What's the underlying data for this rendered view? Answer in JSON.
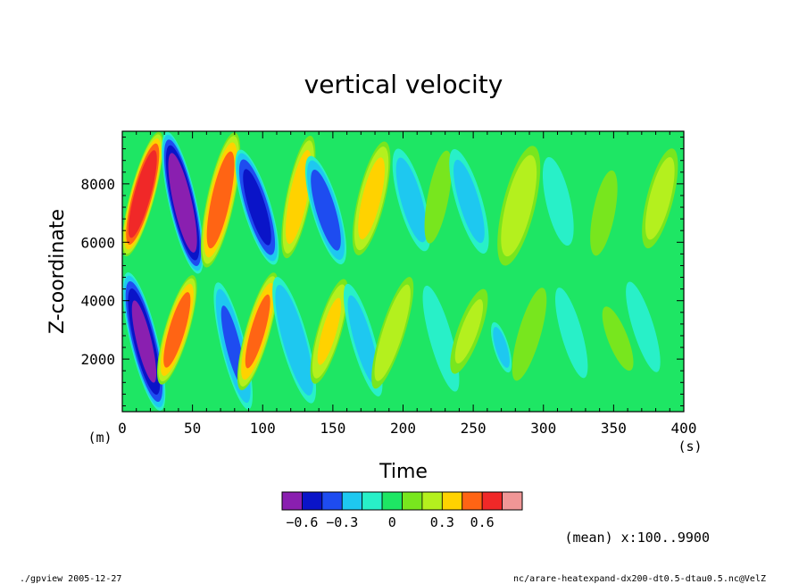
{
  "chart_data": {
    "type": "heatmap",
    "title": "vertical velocity",
    "xlabel": "Time",
    "ylabel": "Z-coordinate",
    "x_unit": "(s)",
    "y_unit": "(m)",
    "xlim": [
      0,
      400
    ],
    "ylim": [
      200,
      9800
    ],
    "x_ticks": [
      "0",
      "50",
      "100",
      "150",
      "200",
      "250",
      "300",
      "350",
      "400"
    ],
    "y_ticks": [
      "2000",
      "4000",
      "6000",
      "8000"
    ],
    "x_tick_values": [
      0,
      50,
      100,
      150,
      200,
      250,
      300,
      350,
      400
    ],
    "y_tick_values": [
      2000,
      4000,
      6000,
      8000
    ],
    "colorbar": {
      "levels": [
        -0.75,
        -0.6,
        -0.45,
        -0.3,
        -0.15,
        -0.05,
        0.05,
        0.15,
        0.3,
        0.45,
        0.6,
        0.75
      ],
      "colors": [
        "#8a1fb0",
        "#0a14c8",
        "#1e4cf0",
        "#1ec8f0",
        "#28f0c8",
        "#1ee664",
        "#78e61e",
        "#b4f01e",
        "#ffd200",
        "#ff6414",
        "#f02828",
        "#f09696"
      ],
      "tick_labels": [
        "−0.6",
        "−0.3",
        "0",
        "0.3",
        "0.6"
      ],
      "tick_values": [
        -0.6,
        -0.3,
        0,
        0.3,
        0.6
      ]
    },
    "field_note": "(mean) x:100..9900"
  },
  "footer": {
    "left": "./gpview  2005-12-27",
    "right": "nc/arare-heatexpand-dx200-dt0.5-dtau0.5.nc@VelZ"
  }
}
